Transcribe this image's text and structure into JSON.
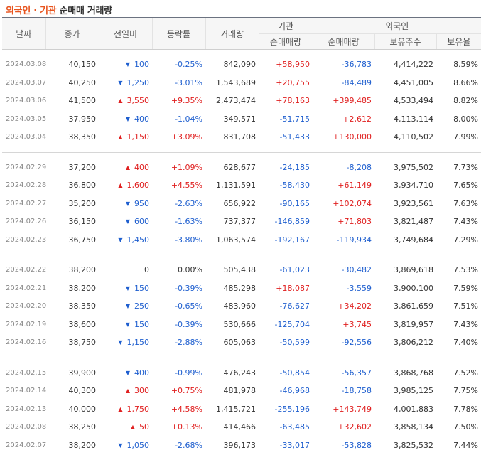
{
  "title": {
    "part1": "외국인 · 기관",
    "part2": "순매매 거래량"
  },
  "headers": {
    "date": "날짜",
    "close": "종가",
    "change": "전일비",
    "rate": "등락률",
    "volume": "거래량",
    "inst": "기관",
    "foreign": "외국인",
    "inst_net": "순매매량",
    "foreign_net": "순매매량",
    "holdings": "보유주수",
    "ratio": "보유율"
  },
  "colors": {
    "up": "#e02020",
    "down": "#1f5fcf",
    "title_accent": "#e8541e"
  },
  "groups": [
    [
      {
        "date": "2024.03.08",
        "close": "40,150",
        "dir": "down",
        "change": "100",
        "rate": "-0.25%",
        "volume": "842,090",
        "inst": "+58,950",
        "foreign": "-36,783",
        "holdings": "4,414,222",
        "ratio": "8.59%"
      },
      {
        "date": "2024.03.07",
        "close": "40,250",
        "dir": "down",
        "change": "1,250",
        "rate": "-3.01%",
        "volume": "1,543,689",
        "inst": "+20,755",
        "foreign": "-84,489",
        "holdings": "4,451,005",
        "ratio": "8.66%"
      },
      {
        "date": "2024.03.06",
        "close": "41,500",
        "dir": "up",
        "change": "3,550",
        "rate": "+9.35%",
        "volume": "2,473,474",
        "inst": "+78,163",
        "foreign": "+399,485",
        "holdings": "4,533,494",
        "ratio": "8.82%"
      },
      {
        "date": "2024.03.05",
        "close": "37,950",
        "dir": "down",
        "change": "400",
        "rate": "-1.04%",
        "volume": "349,571",
        "inst": "-51,715",
        "foreign": "+2,612",
        "holdings": "4,113,114",
        "ratio": "8.00%"
      },
      {
        "date": "2024.03.04",
        "close": "38,350",
        "dir": "up",
        "change": "1,150",
        "rate": "+3.09%",
        "volume": "831,708",
        "inst": "-51,433",
        "foreign": "+130,000",
        "holdings": "4,110,502",
        "ratio": "7.99%"
      }
    ],
    [
      {
        "date": "2024.02.29",
        "close": "37,200",
        "dir": "up",
        "change": "400",
        "rate": "+1.09%",
        "volume": "628,677",
        "inst": "-24,185",
        "foreign": "-8,208",
        "holdings": "3,975,502",
        "ratio": "7.73%"
      },
      {
        "date": "2024.02.28",
        "close": "36,800",
        "dir": "up",
        "change": "1,600",
        "rate": "+4.55%",
        "volume": "1,131,591",
        "inst": "-58,430",
        "foreign": "+61,149",
        "holdings": "3,934,710",
        "ratio": "7.65%"
      },
      {
        "date": "2024.02.27",
        "close": "35,200",
        "dir": "down",
        "change": "950",
        "rate": "-2.63%",
        "volume": "656,922",
        "inst": "-90,165",
        "foreign": "+102,074",
        "holdings": "3,923,561",
        "ratio": "7.63%"
      },
      {
        "date": "2024.02.26",
        "close": "36,150",
        "dir": "down",
        "change": "600",
        "rate": "-1.63%",
        "volume": "737,377",
        "inst": "-146,859",
        "foreign": "+71,803",
        "holdings": "3,821,487",
        "ratio": "7.43%"
      },
      {
        "date": "2024.02.23",
        "close": "36,750",
        "dir": "down",
        "change": "1,450",
        "rate": "-3.80%",
        "volume": "1,063,574",
        "inst": "-192,167",
        "foreign": "-119,934",
        "holdings": "3,749,684",
        "ratio": "7.29%"
      }
    ],
    [
      {
        "date": "2024.02.22",
        "close": "38,200",
        "dir": "none",
        "change": "0",
        "rate": "0.00%",
        "volume": "505,438",
        "inst": "-61,023",
        "foreign": "-30,482",
        "holdings": "3,869,618",
        "ratio": "7.53%"
      },
      {
        "date": "2024.02.21",
        "close": "38,200",
        "dir": "down",
        "change": "150",
        "rate": "-0.39%",
        "volume": "485,298",
        "inst": "+18,087",
        "foreign": "-3,559",
        "holdings": "3,900,100",
        "ratio": "7.59%"
      },
      {
        "date": "2024.02.20",
        "close": "38,350",
        "dir": "down",
        "change": "250",
        "rate": "-0.65%",
        "volume": "483,960",
        "inst": "-76,627",
        "foreign": "+34,202",
        "holdings": "3,861,659",
        "ratio": "7.51%"
      },
      {
        "date": "2024.02.19",
        "close": "38,600",
        "dir": "down",
        "change": "150",
        "rate": "-0.39%",
        "volume": "530,666",
        "inst": "-125,704",
        "foreign": "+3,745",
        "holdings": "3,819,957",
        "ratio": "7.43%"
      },
      {
        "date": "2024.02.16",
        "close": "38,750",
        "dir": "down",
        "change": "1,150",
        "rate": "-2.88%",
        "volume": "605,063",
        "inst": "-50,599",
        "foreign": "-92,556",
        "holdings": "3,806,212",
        "ratio": "7.40%"
      }
    ],
    [
      {
        "date": "2024.02.15",
        "close": "39,900",
        "dir": "down",
        "change": "400",
        "rate": "-0.99%",
        "volume": "476,243",
        "inst": "-50,854",
        "foreign": "-56,357",
        "holdings": "3,868,768",
        "ratio": "7.52%"
      },
      {
        "date": "2024.02.14",
        "close": "40,300",
        "dir": "up",
        "change": "300",
        "rate": "+0.75%",
        "volume": "481,978",
        "inst": "-46,968",
        "foreign": "-18,758",
        "holdings": "3,985,125",
        "ratio": "7.75%"
      },
      {
        "date": "2024.02.13",
        "close": "40,000",
        "dir": "up",
        "change": "1,750",
        "rate": "+4.58%",
        "volume": "1,415,721",
        "inst": "-255,196",
        "foreign": "+143,749",
        "holdings": "4,001,883",
        "ratio": "7.78%"
      },
      {
        "date": "2024.02.08",
        "close": "38,250",
        "dir": "up",
        "change": "50",
        "rate": "+0.13%",
        "volume": "414,466",
        "inst": "-63,485",
        "foreign": "+32,602",
        "holdings": "3,858,134",
        "ratio": "7.50%"
      },
      {
        "date": "2024.02.07",
        "close": "38,200",
        "dir": "down",
        "change": "1,050",
        "rate": "-2.68%",
        "volume": "396,173",
        "inst": "-33,017",
        "foreign": "-53,828",
        "holdings": "3,825,532",
        "ratio": "7.44%"
      }
    ]
  ]
}
